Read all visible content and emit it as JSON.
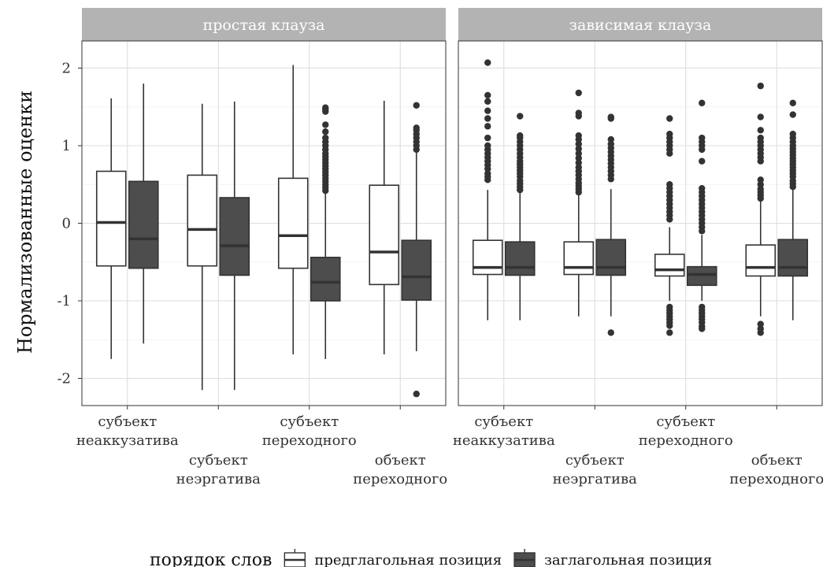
{
  "chart_data": {
    "type": "boxplot",
    "ylabel": "Нормализованные оценки",
    "ylim": [
      -2.35,
      2.35
    ],
    "yticks": [
      -2,
      -1,
      0,
      1,
      2
    ],
    "ytick_labels": [
      "-2",
      "-1",
      "0",
      "1",
      "2"
    ],
    "grid": true,
    "legend_position": "bottom",
    "legend": {
      "title": "порядок слов",
      "entries": [
        {
          "name": "предглагольная позиция",
          "fill": "#ffffff"
        },
        {
          "name": "заглагольная позиция",
          "fill": "#4d4d4d"
        }
      ]
    },
    "categories": [
      {
        "line1": "субъект",
        "line2": "неаккузатива",
        "row": 0
      },
      {
        "line1": "субъект",
        "line2": "неэргатива",
        "row": 1
      },
      {
        "line1": "субъект",
        "line2": "переходного",
        "row": 0
      },
      {
        "line1": "объект",
        "line2": "переходного",
        "row": 1
      }
    ],
    "panels": [
      {
        "title": "простая клауза",
        "groups": [
          {
            "pre": {
              "whisker_low": -1.75,
              "q1": -0.55,
              "median": 0.01,
              "q3": 0.67,
              "whisker_high": 1.61,
              "outliers": []
            },
            "post": {
              "whisker_low": -1.55,
              "q1": -0.58,
              "median": -0.2,
              "q3": 0.54,
              "whisker_high": 1.8,
              "outliers": []
            }
          },
          {
            "pre": {
              "whisker_low": -2.15,
              "q1": -0.55,
              "median": -0.08,
              "q3": 0.62,
              "whisker_high": 1.54,
              "outliers": []
            },
            "post": {
              "whisker_low": -2.15,
              "q1": -0.67,
              "median": -0.29,
              "q3": 0.33,
              "whisker_high": 1.57,
              "outliers": []
            }
          },
          {
            "pre": {
              "whisker_low": -1.69,
              "q1": -0.58,
              "median": -0.16,
              "q3": 0.58,
              "whisker_high": 2.04,
              "outliers": []
            },
            "post": {
              "whisker_low": -1.75,
              "q1": -1.0,
              "median": -0.76,
              "q3": -0.44,
              "whisker_high": 0.39,
              "outliers": [
                0.42,
                0.46,
                0.5,
                0.54,
                0.58,
                0.62,
                0.66,
                0.7,
                0.74,
                0.78,
                0.82,
                0.86,
                0.9,
                0.95,
                1.0,
                1.05,
                1.1,
                1.18,
                1.27,
                1.44,
                1.47,
                1.49
              ]
            }
          },
          {
            "pre": {
              "whisker_low": -1.69,
              "q1": -0.79,
              "median": -0.37,
              "q3": 0.49,
              "whisker_high": 1.58,
              "outliers": []
            },
            "post": {
              "whisker_low": -1.65,
              "q1": -0.99,
              "median": -0.69,
              "q3": -0.22,
              "whisker_high": 0.92,
              "outliers": [
                0.95,
                1.0,
                1.05,
                1.1,
                1.15,
                1.2,
                1.23,
                1.52,
                -2.2
              ]
            }
          }
        ]
      },
      {
        "title": "зависимая клауза",
        "groups": [
          {
            "pre": {
              "whisker_low": -1.25,
              "q1": -0.66,
              "median": -0.57,
              "q3": -0.22,
              "whisker_high": 0.43,
              "outliers": [
                0.56,
                0.6,
                0.64,
                0.7,
                0.75,
                0.8,
                0.85,
                0.9,
                0.95,
                1.0,
                1.1,
                1.25,
                1.35,
                1.45,
                1.57,
                1.65,
                2.07
              ]
            },
            "post": {
              "whisker_low": -1.25,
              "q1": -0.67,
              "median": -0.57,
              "q3": -0.24,
              "whisker_high": 0.4,
              "outliers": [
                0.43,
                0.47,
                0.51,
                0.55,
                0.6,
                0.64,
                0.68,
                0.72,
                0.76,
                0.8,
                0.85,
                0.9,
                0.95,
                1.0,
                1.05,
                1.1,
                1.13,
                1.38
              ]
            }
          },
          {
            "pre": {
              "whisker_low": -1.2,
              "q1": -0.66,
              "median": -0.57,
              "q3": -0.24,
              "whisker_high": 0.36,
              "outliers": [
                0.4,
                0.44,
                0.48,
                0.52,
                0.57,
                0.62,
                0.67,
                0.72,
                0.78,
                0.84,
                0.9,
                0.96,
                1.02,
                1.08,
                1.13,
                1.38,
                1.42,
                1.68
              ]
            },
            "post": {
              "whisker_low": -1.2,
              "q1": -0.67,
              "median": -0.57,
              "q3": -0.21,
              "whisker_high": 0.44,
              "outliers": [
                0.57,
                0.62,
                0.67,
                0.72,
                0.77,
                0.82,
                0.87,
                0.92,
                0.97,
                1.02,
                1.08,
                1.35,
                1.37,
                -1.41
              ]
            }
          },
          {
            "pre": {
              "whisker_low": -1.0,
              "q1": -0.68,
              "median": -0.6,
              "q3": -0.4,
              "whisker_high": -0.05,
              "outliers": [
                0.05,
                0.1,
                0.15,
                0.2,
                0.25,
                0.3,
                0.35,
                0.4,
                0.45,
                0.5,
                0.9,
                0.95,
                1.0,
                1.05,
                1.1,
                1.15,
                1.35,
                -1.08,
                -1.12,
                -1.16,
                -1.2,
                -1.24,
                -1.28,
                -1.32,
                -1.41
              ]
            },
            "post": {
              "whisker_low": -1.0,
              "q1": -0.8,
              "median": -0.66,
              "q3": -0.56,
              "whisker_high": -0.15,
              "outliers": [
                -0.1,
                -0.05,
                0.0,
                0.05,
                0.1,
                0.15,
                0.2,
                0.25,
                0.3,
                0.35,
                0.4,
                0.45,
                0.8,
                0.95,
                1.0,
                1.05,
                1.1,
                1.55,
                -1.08,
                -1.12,
                -1.16,
                -1.2,
                -1.24,
                -1.28,
                -1.33,
                -1.36
              ]
            }
          },
          {
            "pre": {
              "whisker_low": -1.2,
              "q1": -0.68,
              "median": -0.57,
              "q3": -0.28,
              "whisker_high": 0.3,
              "outliers": [
                0.32,
                0.36,
                0.4,
                0.44,
                0.5,
                0.56,
                0.8,
                0.85,
                0.9,
                0.95,
                1.0,
                1.05,
                1.1,
                1.2,
                1.37,
                1.77,
                -1.3,
                -1.36,
                -1.41
              ]
            },
            "post": {
              "whisker_low": -1.25,
              "q1": -0.68,
              "median": -0.57,
              "q3": -0.21,
              "whisker_high": 0.44,
              "outliers": [
                0.47,
                0.51,
                0.55,
                0.6,
                0.64,
                0.68,
                0.72,
                0.76,
                0.8,
                0.84,
                0.88,
                0.92,
                0.96,
                1.0,
                1.05,
                1.1,
                1.15,
                1.4,
                1.55
              ]
            }
          }
        ]
      }
    ]
  }
}
